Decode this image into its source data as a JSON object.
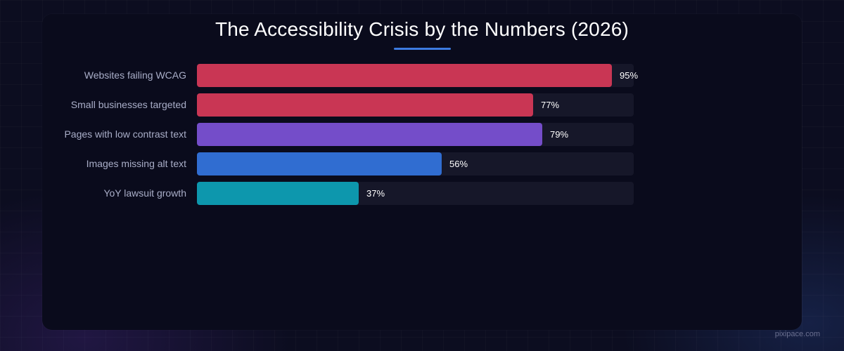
{
  "chart_data": {
    "type": "bar",
    "orientation": "horizontal",
    "title": "The Accessibility Crisis by the Numbers (2026)",
    "categories": [
      "Websites failing WCAG",
      "Small businesses targeted",
      "Pages with low contrast text",
      "Images missing alt text",
      "YoY lawsuit growth"
    ],
    "values": [
      95,
      77,
      79,
      56,
      37
    ],
    "value_labels": [
      "95%",
      "77%",
      "79%",
      "56%",
      "37%"
    ],
    "colors": [
      "#c93654",
      "#c93654",
      "#744dc9",
      "#306dd1",
      "#0d97ad"
    ],
    "xlim": [
      0,
      100
    ],
    "grid": false,
    "legend": "none"
  },
  "title_accent_color": "#3d7be0",
  "watermark": "pixipace.com"
}
